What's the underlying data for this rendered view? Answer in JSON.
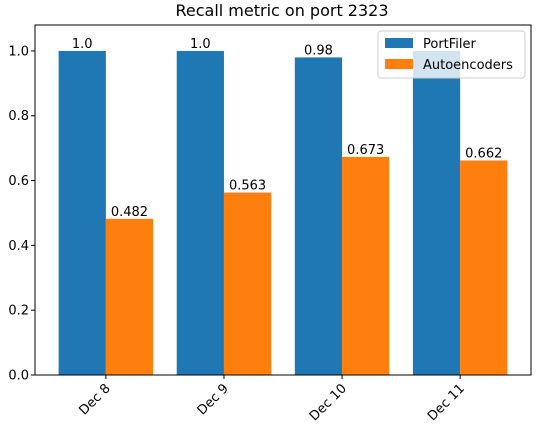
{
  "chart_data": {
    "type": "bar",
    "title": "Recall metric on port 2323",
    "xlabel": "",
    "ylabel": "",
    "categories": [
      "Dec 8",
      "Dec 9",
      "Dec 10",
      "Dec 11"
    ],
    "ylim": [
      0,
      1.08
    ],
    "yticks": [
      0.0,
      0.2,
      0.4,
      0.6,
      0.8,
      1.0
    ],
    "ytick_labels": [
      "0.0",
      "0.2",
      "0.4",
      "0.6",
      "0.8",
      "1.0"
    ],
    "legend_position": "top-right",
    "grid": false,
    "series": [
      {
        "name": "PortFiler",
        "color": "#1f77b4",
        "values": [
          1.0,
          1.0,
          0.98,
          1.0
        ],
        "labels": [
          "1.0",
          "1.0",
          "0.98",
          ""
        ]
      },
      {
        "name": "Autoencoders",
        "color": "#ff7f0e",
        "values": [
          0.482,
          0.563,
          0.673,
          0.662
        ],
        "labels": [
          "0.482",
          "0.563",
          "0.673",
          "0.662"
        ]
      }
    ]
  }
}
